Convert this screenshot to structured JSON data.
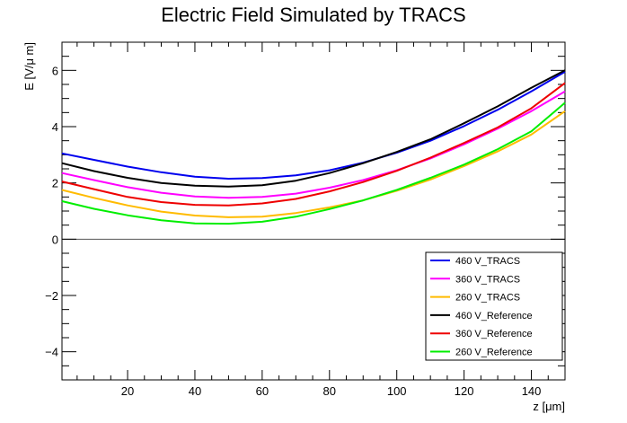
{
  "chart_data": {
    "type": "line",
    "title": "Electric Field Simulated by TRACS",
    "xlabel": "z [μm]",
    "ylabel": "E [V/μ m]",
    "xlim": [
      0.5,
      150
    ],
    "ylim": [
      -5,
      7
    ],
    "xticks": [
      20,
      40,
      60,
      80,
      100,
      120,
      140
    ],
    "yticks": [
      -4,
      -2,
      0,
      2,
      4,
      6
    ],
    "x": [
      0.5,
      10,
      20,
      30,
      40,
      50,
      60,
      70,
      80,
      90,
      100,
      110,
      120,
      130,
      140,
      150
    ],
    "series": [
      {
        "name": "460 V_TRACS",
        "color": "#0000ee",
        "values": [
          3.05,
          2.82,
          2.58,
          2.38,
          2.22,
          2.15,
          2.17,
          2.27,
          2.45,
          2.72,
          3.07,
          3.5,
          4.02,
          4.6,
          5.25,
          5.95
        ]
      },
      {
        "name": "360 V_TRACS",
        "color": "#ff00ff",
        "values": [
          2.35,
          2.1,
          1.85,
          1.65,
          1.52,
          1.47,
          1.5,
          1.62,
          1.83,
          2.1,
          2.45,
          2.87,
          3.37,
          3.93,
          4.55,
          5.25
        ]
      },
      {
        "name": "260 V_TRACS",
        "color": "#ffbb00",
        "values": [
          1.75,
          1.47,
          1.2,
          0.98,
          0.84,
          0.78,
          0.8,
          0.93,
          1.13,
          1.38,
          1.72,
          2.12,
          2.6,
          3.12,
          3.72,
          4.55
        ]
      },
      {
        "name": "460 V_Reference",
        "color": "#000000",
        "values": [
          2.7,
          2.42,
          2.18,
          2.0,
          1.9,
          1.87,
          1.92,
          2.08,
          2.35,
          2.7,
          3.1,
          3.55,
          4.12,
          4.72,
          5.38,
          6.0
        ]
      },
      {
        "name": "360 V_Reference",
        "color": "#ee0000",
        "values": [
          2.05,
          1.78,
          1.5,
          1.32,
          1.22,
          1.2,
          1.27,
          1.43,
          1.7,
          2.03,
          2.43,
          2.9,
          3.42,
          3.97,
          4.65,
          5.55
        ]
      },
      {
        "name": "260 V_Reference",
        "color": "#00ee00",
        "values": [
          1.35,
          1.08,
          0.85,
          0.67,
          0.56,
          0.55,
          0.62,
          0.8,
          1.07,
          1.38,
          1.75,
          2.18,
          2.65,
          3.2,
          3.83,
          4.85
        ]
      }
    ],
    "legend_position": "bottom-right",
    "zero_line": true,
    "grid": false
  }
}
